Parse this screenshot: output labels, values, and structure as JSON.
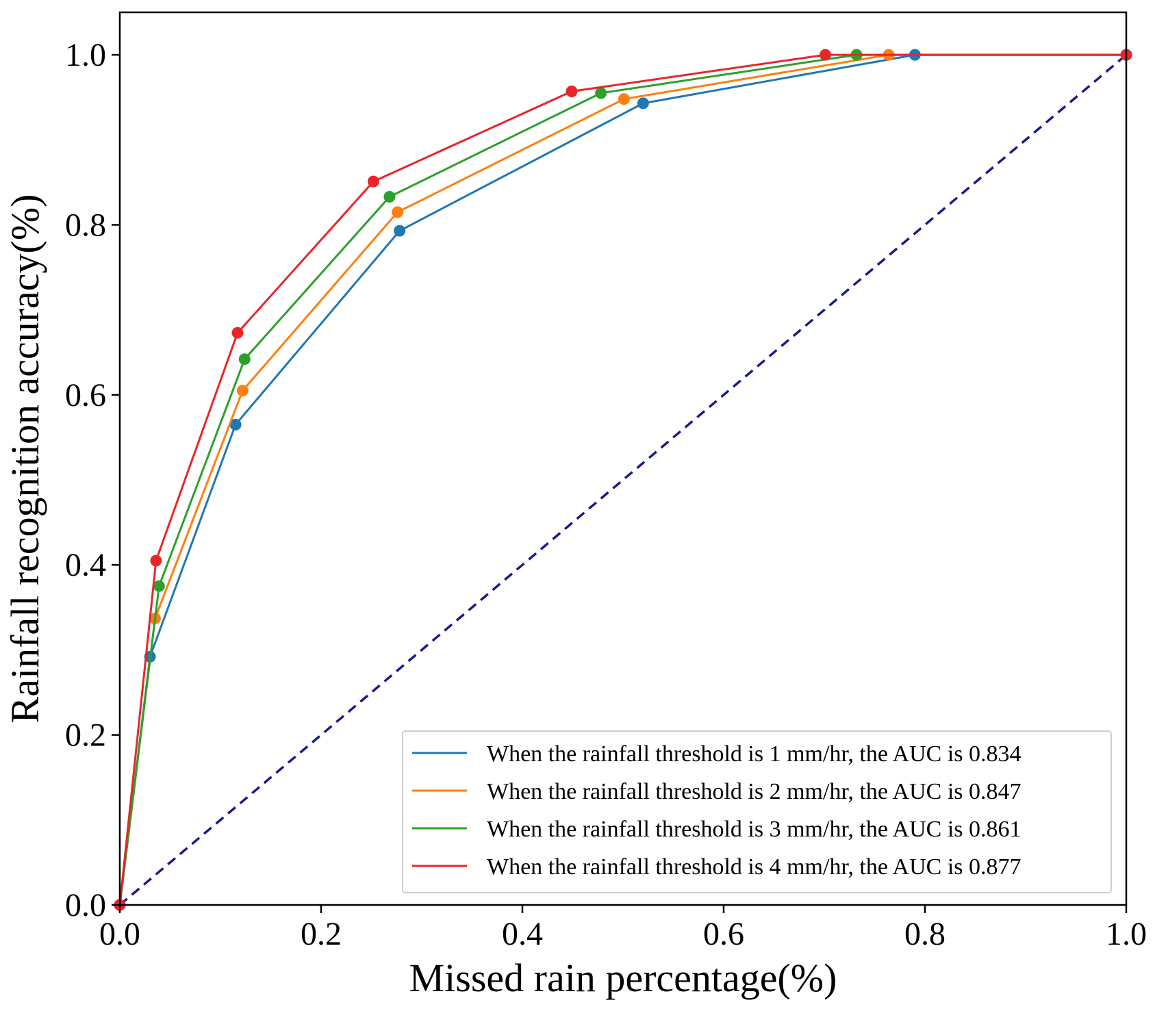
{
  "chart_data": {
    "type": "line",
    "title": "",
    "xlabel": "Missed rain percentage(%)",
    "ylabel": "Rainfall recognition accuracy(%)",
    "xlim": [
      0.0,
      1.0
    ],
    "ylim": [
      0.0,
      1.05
    ],
    "xticks": [
      "0.0",
      "0.2",
      "0.4",
      "0.6",
      "0.8",
      "1.0"
    ],
    "yticks": [
      "0.0",
      "0.2",
      "0.4",
      "0.6",
      "0.8",
      "1.0"
    ],
    "grid": false,
    "legend_position": "lower-right",
    "series": [
      {
        "name": "When the rainfall threshold is 1 mm/hr, the AUC is 0.834",
        "color": "#1f77b4",
        "x": [
          0.0,
          0.03,
          0.115,
          0.278,
          0.52,
          0.79,
          1.0
        ],
        "y": [
          0.0,
          0.292,
          0.565,
          0.793,
          0.943,
          1.0,
          1.0
        ]
      },
      {
        "name": "When the rainfall threshold is 2 mm/hr, the AUC is 0.847",
        "color": "#ff7f0e",
        "x": [
          0.0,
          0.035,
          0.122,
          0.276,
          0.501,
          0.764,
          1.0
        ],
        "y": [
          0.0,
          0.337,
          0.605,
          0.815,
          0.948,
          1.0,
          1.0
        ]
      },
      {
        "name": "When the rainfall threshold is 3 mm/hr, the AUC is 0.861",
        "color": "#2ca02c",
        "x": [
          0.0,
          0.039,
          0.124,
          0.268,
          0.478,
          0.732,
          1.0
        ],
        "y": [
          0.0,
          0.375,
          0.642,
          0.833,
          0.955,
          1.0,
          1.0
        ]
      },
      {
        "name": "When the rainfall threshold is 4 mm/hr, the AUC is 0.877",
        "color": "#e8262a",
        "x": [
          0.0,
          0.036,
          0.117,
          0.252,
          0.449,
          0.701,
          1.0
        ],
        "y": [
          0.0,
          0.405,
          0.673,
          0.851,
          0.957,
          1.0,
          1.0
        ]
      }
    ],
    "reference_line": {
      "name": "random-classifier-diagonal",
      "color": "#1a1a8c",
      "style": "dashed",
      "x": [
        0.0,
        1.0
      ],
      "y": [
        0.0,
        1.0
      ]
    }
  }
}
